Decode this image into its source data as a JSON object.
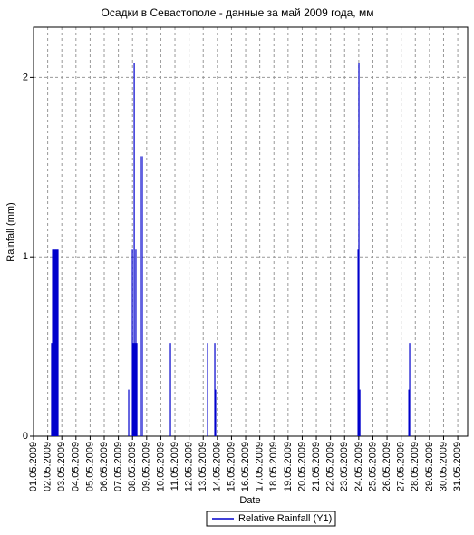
{
  "chart_data": {
    "type": "bar",
    "title": "Осадки в Севастополе - данные за май 2009 года, мм",
    "x_label": "Date",
    "y_label": "Rainfall (mm)",
    "legend": "bottom",
    "grid": true,
    "xlim": [
      1,
      31.7
    ],
    "ylim": [
      0,
      2.28
    ],
    "yticks": [
      0,
      1,
      2
    ],
    "xticks": [
      {
        "value": 1,
        "label": "01.05.2009"
      },
      {
        "value": 2,
        "label": "02.05.2009"
      },
      {
        "value": 3,
        "label": "03.05.2009"
      },
      {
        "value": 4,
        "label": "04.05.2009"
      },
      {
        "value": 5,
        "label": "05.05.2009"
      },
      {
        "value": 6,
        "label": "06.05.2009"
      },
      {
        "value": 7,
        "label": "07.05.2009"
      },
      {
        "value": 8,
        "label": "08.05.2009"
      },
      {
        "value": 9,
        "label": "09.05.2009"
      },
      {
        "value": 10,
        "label": "10.05.2009"
      },
      {
        "value": 11,
        "label": "11.05.2009"
      },
      {
        "value": 12,
        "label": "12.05.2009"
      },
      {
        "value": 13,
        "label": "13.05.2009"
      },
      {
        "value": 14,
        "label": "14.05.2009"
      },
      {
        "value": 15,
        "label": "15.05.2009"
      },
      {
        "value": 16,
        "label": "16.05.2009"
      },
      {
        "value": 17,
        "label": "17.05.2009"
      },
      {
        "value": 18,
        "label": "18.05.2009"
      },
      {
        "value": 19,
        "label": "19.05.2009"
      },
      {
        "value": 20,
        "label": "20.05.2009"
      },
      {
        "value": 21,
        "label": "21.05.2009"
      },
      {
        "value": 22,
        "label": "22.05.2009"
      },
      {
        "value": 23,
        "label": "23.05.2009"
      },
      {
        "value": 24,
        "label": "24.05.2009"
      },
      {
        "value": 25,
        "label": "25.05.2009"
      },
      {
        "value": 26,
        "label": "26.05.2009"
      },
      {
        "value": 27,
        "label": "27.05.2009"
      },
      {
        "value": 28,
        "label": "28.05.2009"
      },
      {
        "value": 29,
        "label": "29.05.2009"
      },
      {
        "value": 30,
        "label": "30.05.2009"
      },
      {
        "value": 31,
        "label": "31.05.2009"
      }
    ],
    "series": [
      {
        "name": "Relative Rainfall (Y1)",
        "color": "#0000cc",
        "x": [
          2.28,
          2.35,
          2.41,
          2.47,
          2.54,
          2.6,
          2.67,
          2.73,
          7.73,
          7.99,
          8.05,
          8.12,
          8.18,
          8.24,
          8.31,
          8.56,
          8.69,
          10.68,
          13.31,
          13.82,
          13.88,
          23.95,
          24.01,
          24.08,
          27.54,
          27.6
        ],
        "values": [
          0.52,
          1.04,
          1.04,
          1.04,
          1.04,
          1.04,
          1.04,
          1.04,
          0.26,
          1.04,
          0.52,
          2.08,
          0.52,
          1.04,
          0.52,
          1.56,
          1.56,
          0.52,
          0.52,
          0.52,
          0.26,
          1.04,
          2.08,
          0.26,
          0.26,
          0.52
        ]
      }
    ]
  }
}
